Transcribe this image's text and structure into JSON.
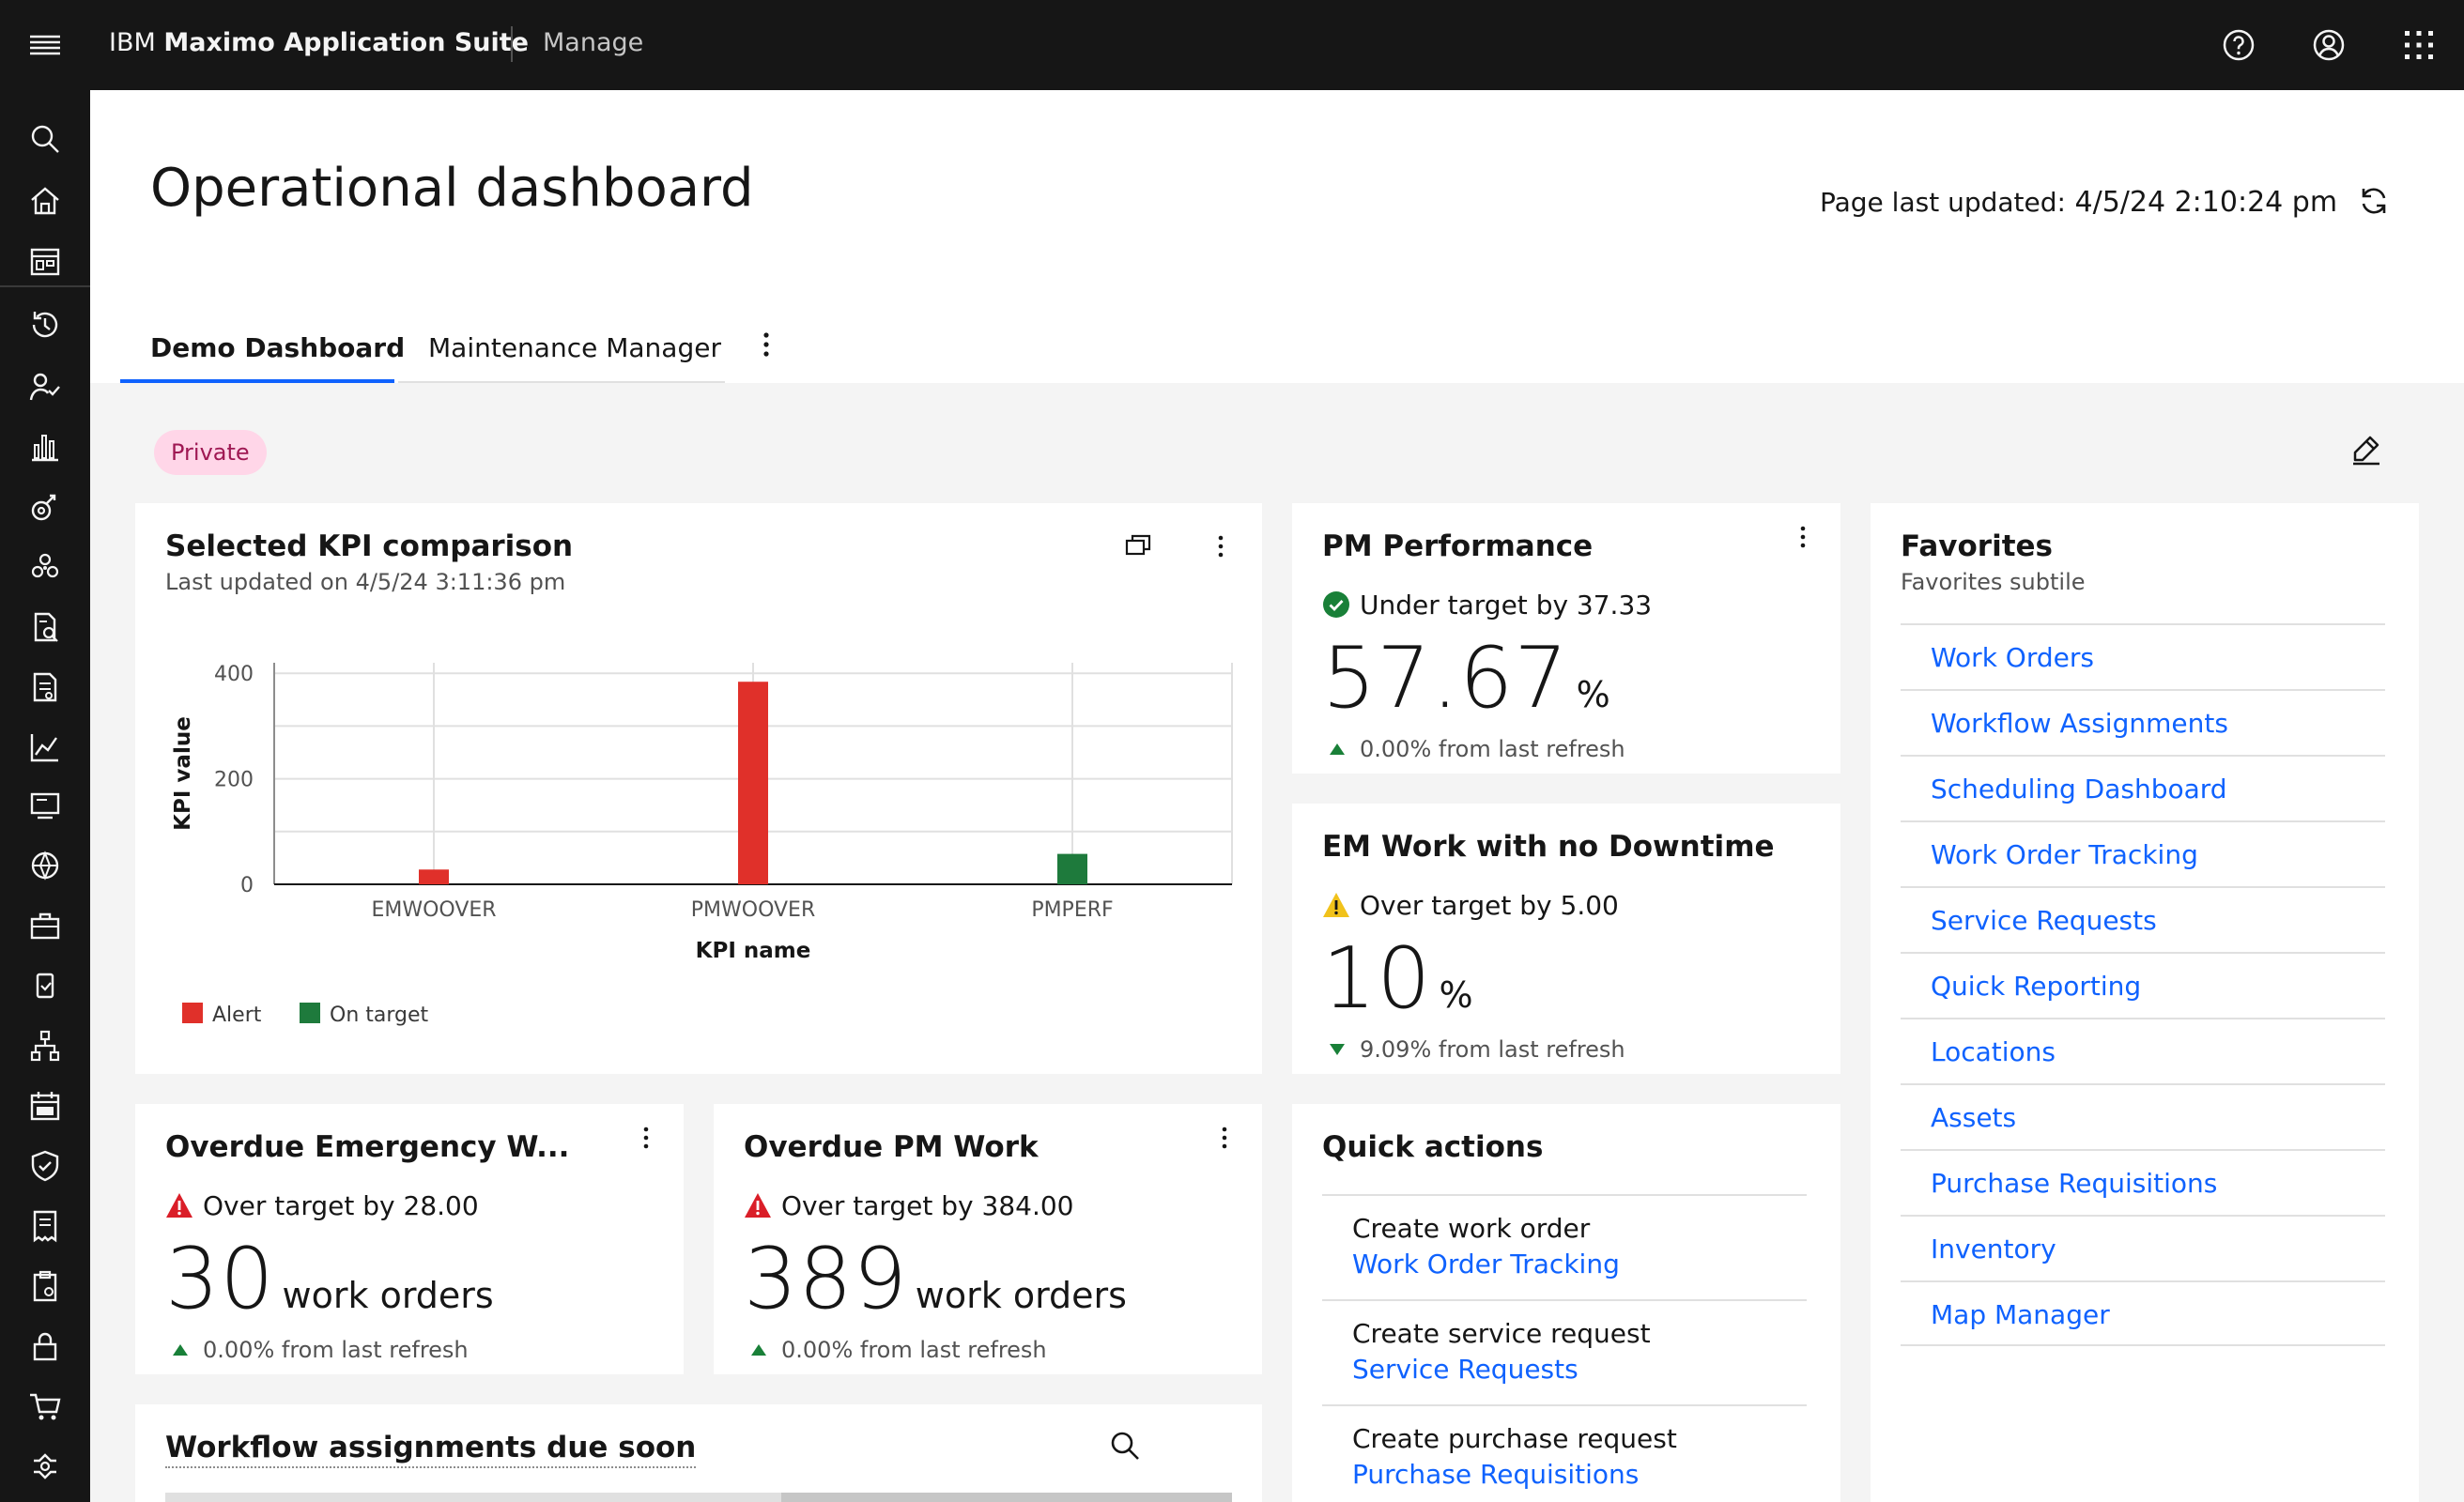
{
  "header": {
    "brand_prefix": "IBM",
    "brand_name": "Maximo Application Suite",
    "app_name": "Manage"
  },
  "page": {
    "title": "Operational dashboard",
    "last_updated_label": "Page last updated:",
    "last_updated_value": "4/5/24 2:10:24 pm"
  },
  "tabs": [
    {
      "label": "Demo Dashboard",
      "selected": true
    },
    {
      "label": "Maintenance Manager",
      "selected": false
    }
  ],
  "visibility_tag": "Private",
  "kpi_card": {
    "title": "Selected KPI comparison",
    "subtitle": "Last updated on 4/5/24 3:11:36 pm"
  },
  "chart_data": {
    "type": "bar",
    "categories": [
      "EMWOOVER",
      "PMWOOVER",
      "PMPERF"
    ],
    "values": [
      28,
      384,
      57.67
    ],
    "statuses": [
      "Alert",
      "Alert",
      "On target"
    ],
    "xlabel": "KPI name",
    "ylabel": "KPI value",
    "ylim": [
      0,
      420
    ],
    "yticks": [
      0,
      200,
      400
    ],
    "grid": true,
    "legend": [
      {
        "name": "Alert",
        "color": "#e0302a"
      },
      {
        "name": "On target",
        "color": "#1e7a3c"
      }
    ],
    "legend_position": "bottom-left"
  },
  "pm_performance": {
    "title": "PM Performance",
    "status": "Under target by 37.33",
    "status_type": "success",
    "value": "57.67",
    "unit": "%",
    "change": "0.00% from last refresh",
    "change_direction": "up"
  },
  "em_work": {
    "title": "EM Work with no Downtime",
    "status": "Over target by 5.00",
    "status_type": "warning",
    "value": "10",
    "unit": "%",
    "change": "9.09% from last refresh",
    "change_direction": "down"
  },
  "overdue_emergency": {
    "title": "Overdue Emergency W...",
    "status": "Over target by 28.00",
    "status_type": "error",
    "value": "30",
    "unit": "work orders",
    "change": "0.00% from last refresh",
    "change_direction": "up"
  },
  "overdue_pm": {
    "title": "Overdue PM Work",
    "status": "Over target by 384.00",
    "status_type": "error",
    "value": "389",
    "unit": "work orders",
    "change": "0.00% from last refresh",
    "change_direction": "up"
  },
  "quick_actions": {
    "title": "Quick actions",
    "items": [
      {
        "label": "Create work order",
        "link": "Work Order Tracking"
      },
      {
        "label": "Create service request",
        "link": "Service Requests"
      },
      {
        "label": "Create purchase request",
        "link": "Purchase Requisitions"
      }
    ]
  },
  "favorites": {
    "title": "Favorites",
    "subtitle": "Favorites subtile",
    "items": [
      {
        "label": "Work Orders"
      },
      {
        "label": "Workflow Assignments"
      },
      {
        "label": "Scheduling Dashboard"
      },
      {
        "label": "Work Order Tracking"
      },
      {
        "label": "Service Requests"
      },
      {
        "label": "Quick Reporting"
      },
      {
        "label": "Locations"
      },
      {
        "label": "Assets"
      },
      {
        "label": "Purchase Requisitions"
      },
      {
        "label": "Inventory"
      },
      {
        "label": "Map Manager"
      }
    ]
  },
  "workflow_card": {
    "title": "Workflow assignments due soon"
  },
  "colors": {
    "accent": "#0f62fe",
    "header_bg": "#161616",
    "alert": "#da1e28",
    "success": "#198038",
    "warning": "#f1c21b"
  },
  "sidenav_icons": [
    "search-icon",
    "home-icon",
    "calendar-dashboard-icon",
    "recently-viewed-icon",
    "user-activity-icon",
    "analytics-icon",
    "asset-icon",
    "industries-icon",
    "report-icon",
    "document-icon",
    "chart-line-icon",
    "screen-icon",
    "network-icon",
    "toolbox-icon",
    "mobile-icon",
    "tree-view-icon",
    "calendar-icon",
    "security-icon",
    "receipt-icon",
    "clipboard-icon",
    "lock-icon",
    "shopping-cart-icon",
    "settings-adjust-icon"
  ]
}
